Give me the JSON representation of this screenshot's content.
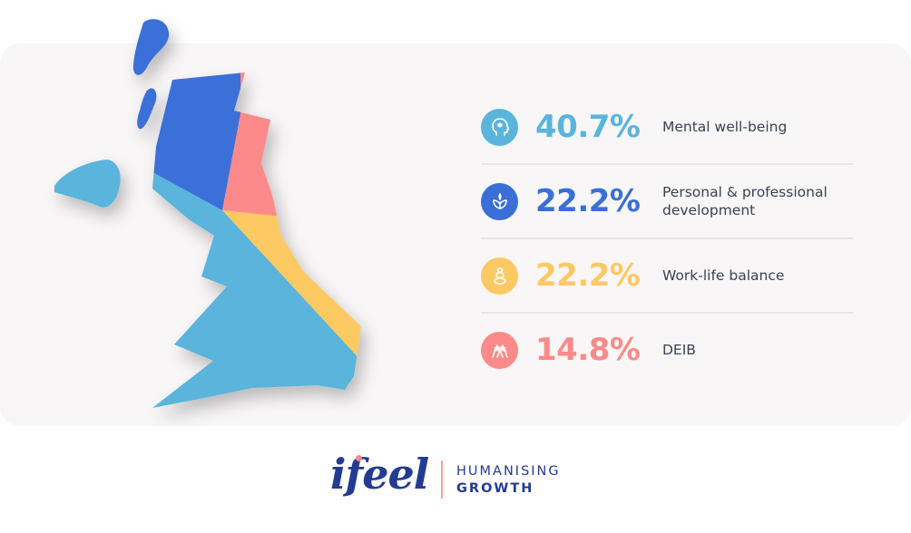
{
  "chart_data": {
    "type": "pie",
    "title": "",
    "series": [
      {
        "name": "Mental well-being",
        "value": 40.7,
        "label": "40.7%",
        "color": "#5ab4dc",
        "icon": "head-icon"
      },
      {
        "name": "Personal & professional development",
        "value": 22.2,
        "label": "22.2%",
        "color": "#3a6fd8",
        "icon": "leaf-icon"
      },
      {
        "name": "Work-life balance",
        "value": 22.2,
        "label": "22.2%",
        "color": "#fdc964",
        "icon": "stones-icon"
      },
      {
        "name": "DEIB",
        "value": 14.8,
        "label": "14.8%",
        "color": "#fd8a8a",
        "icon": "hands-icon"
      }
    ],
    "legend": "right"
  },
  "brand": {
    "logo_text": "ifeel",
    "tagline_line1": "HUMANISING",
    "tagline_line2": "GROWTH",
    "color": "#233b91",
    "accent": "#f3a3a0"
  }
}
